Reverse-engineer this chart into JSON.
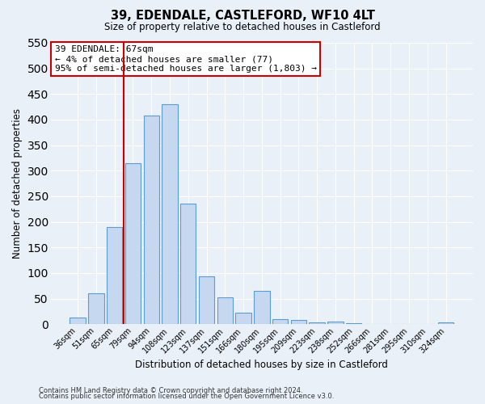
{
  "title": "39, EDENDALE, CASTLEFORD, WF10 4LT",
  "subtitle": "Size of property relative to detached houses in Castleford",
  "xlabel": "Distribution of detached houses by size in Castleford",
  "ylabel": "Number of detached properties",
  "bar_labels": [
    "36sqm",
    "51sqm",
    "65sqm",
    "79sqm",
    "94sqm",
    "108sqm",
    "123sqm",
    "137sqm",
    "151sqm",
    "166sqm",
    "180sqm",
    "195sqm",
    "209sqm",
    "223sqm",
    "238sqm",
    "252sqm",
    "266sqm",
    "281sqm",
    "295sqm",
    "310sqm",
    "324sqm"
  ],
  "bar_values": [
    13,
    60,
    190,
    315,
    408,
    430,
    235,
    93,
    53,
    22,
    65,
    10,
    8,
    4,
    5,
    2,
    1,
    1,
    0,
    0,
    3
  ],
  "bar_color": "#c5d8f0",
  "bar_edge_color": "#5b9bd5",
  "ylim": [
    0,
    550
  ],
  "yticks": [
    0,
    50,
    100,
    150,
    200,
    250,
    300,
    350,
    400,
    450,
    500,
    550
  ],
  "vline_x": 2.5,
  "vline_color": "#cc0000",
  "annotation_title": "39 EDENDALE: 67sqm",
  "annotation_line1": "← 4% of detached houses are smaller (77)",
  "annotation_line2": "95% of semi-detached houses are larger (1,803) →",
  "annotation_box_color": "#ffffff",
  "annotation_box_edge": "#cc0000",
  "footer1": "Contains HM Land Registry data © Crown copyright and database right 2024.",
  "footer2": "Contains public sector information licensed under the Open Government Licence v3.0.",
  "bg_color": "#eaf0f8",
  "plot_bg_color": "#eaf0f8",
  "grid_color": "#ffffff",
  "figsize": [
    6.0,
    5.0
  ],
  "dpi": 100
}
